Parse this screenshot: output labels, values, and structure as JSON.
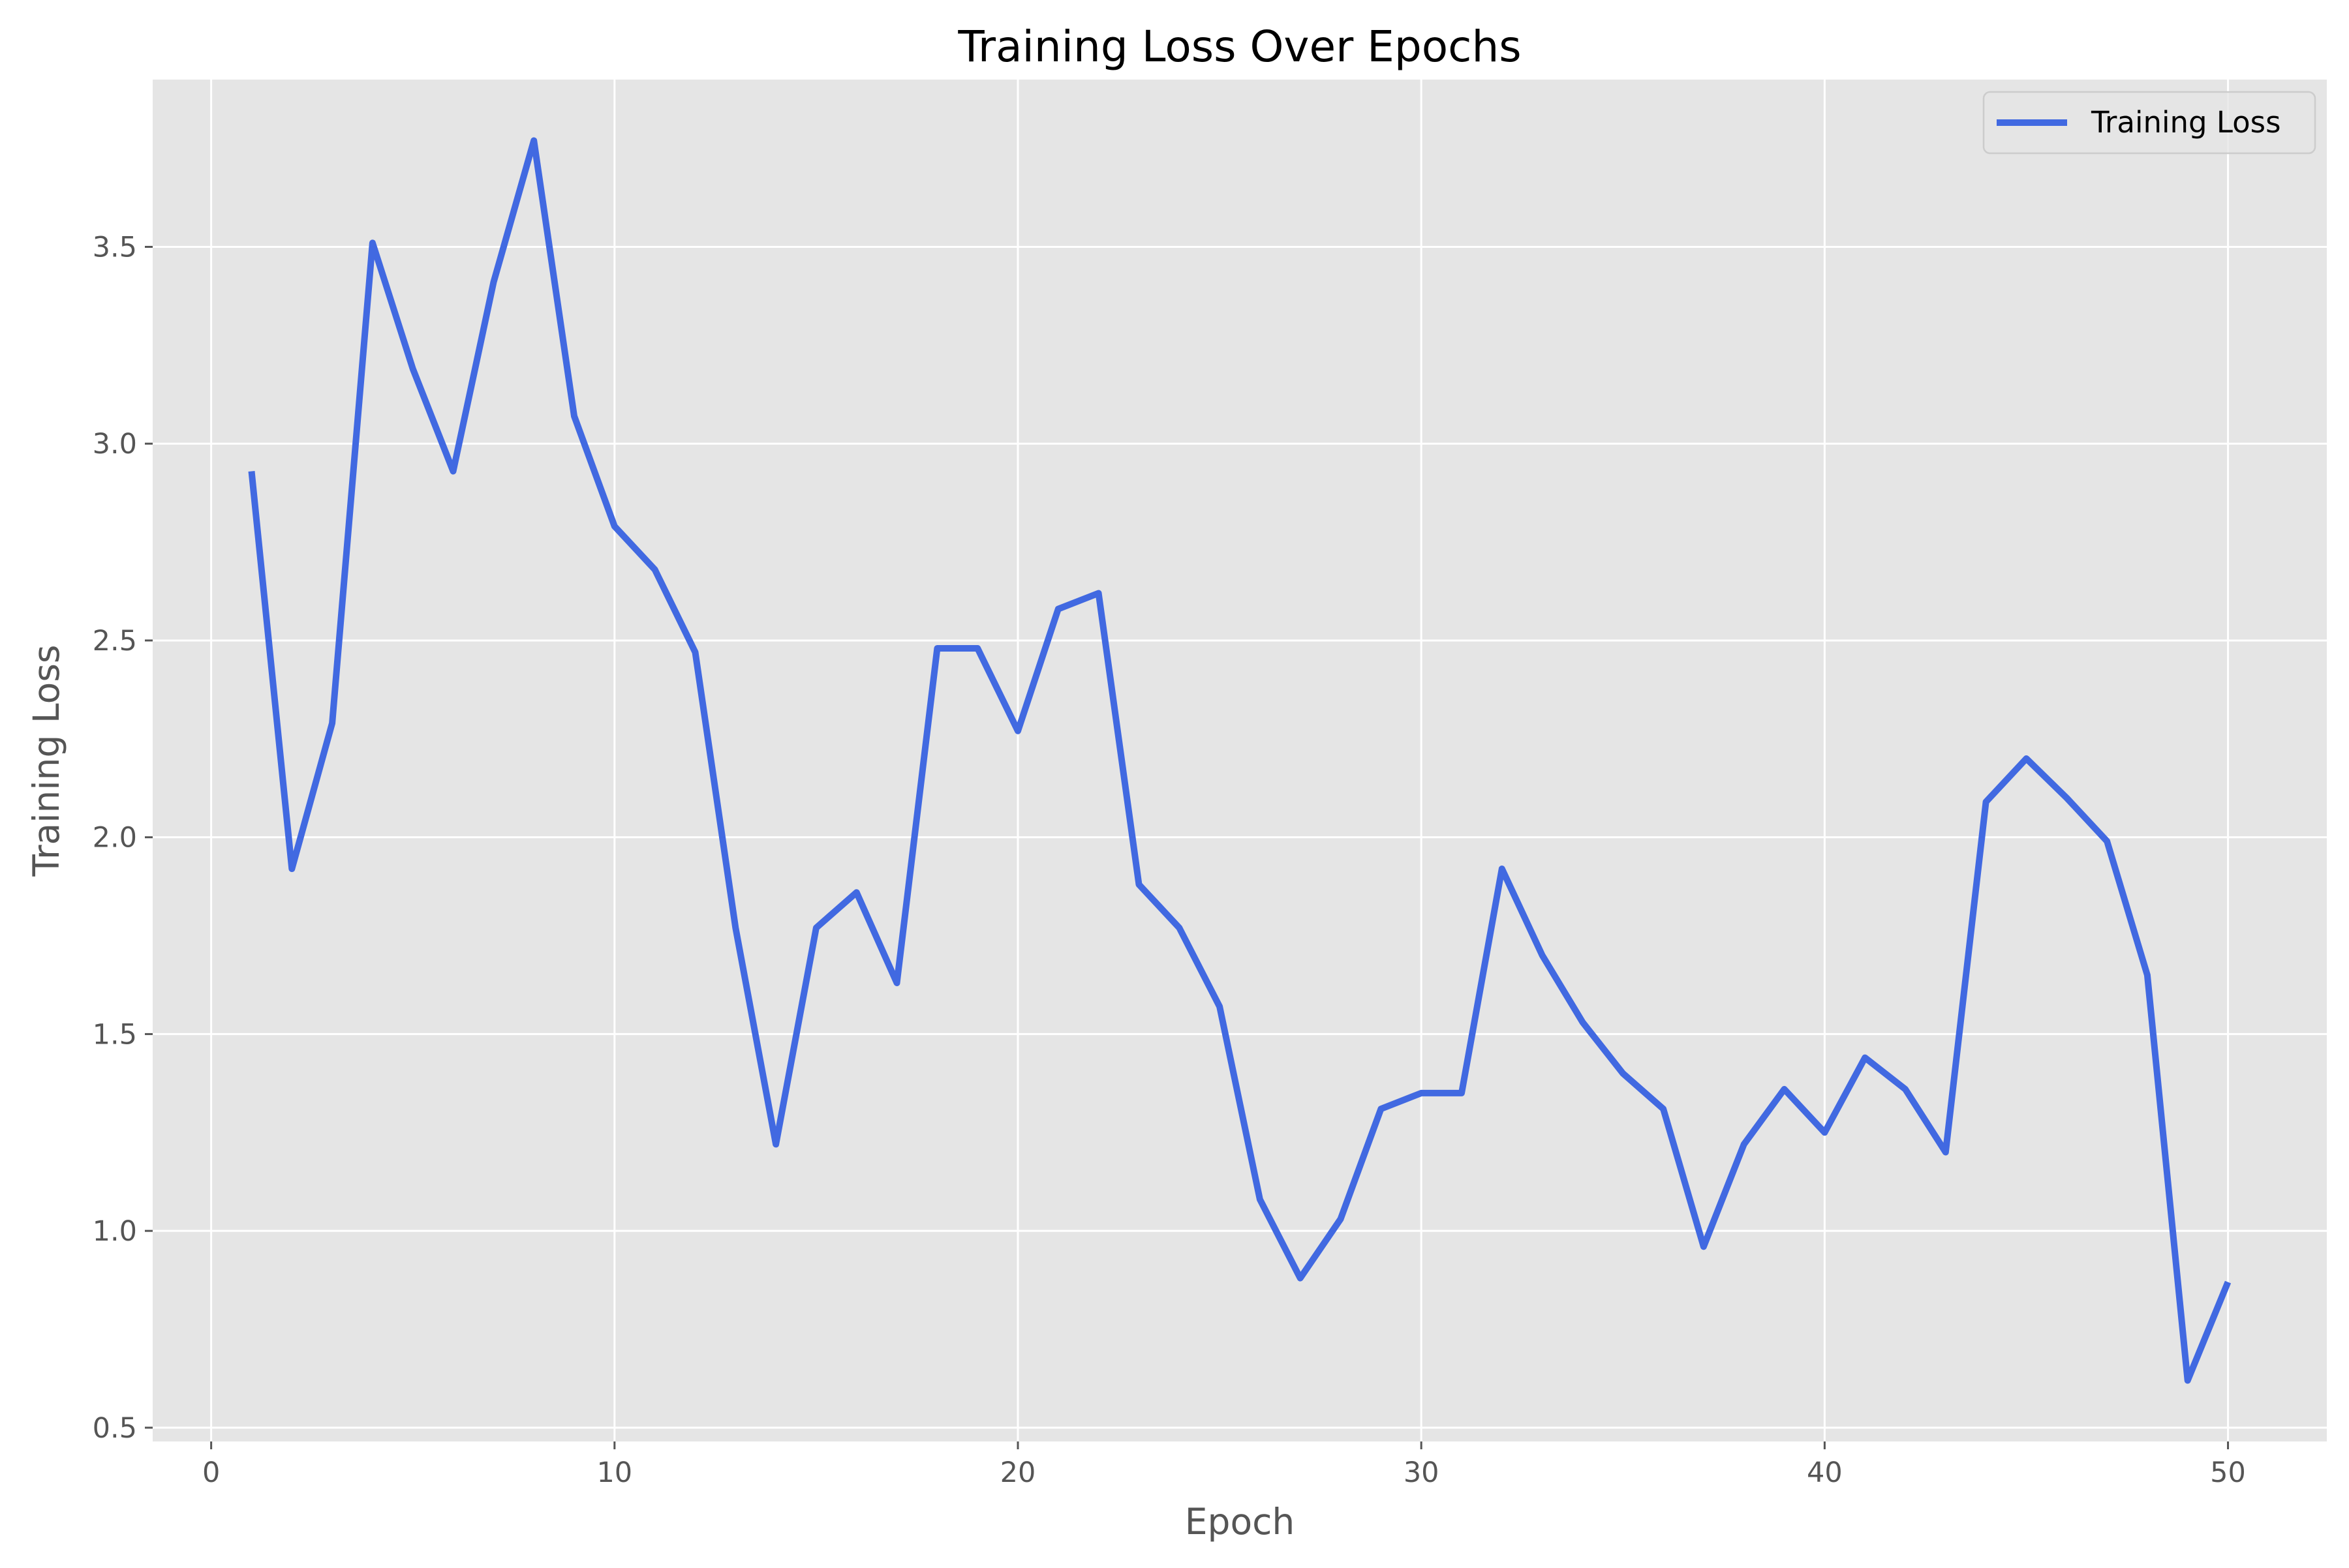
{
  "chart_data": {
    "type": "line",
    "title": "Training Loss Over Epochs",
    "xlabel": "Epoch",
    "ylabel": "Training Loss",
    "xlim": [
      -1.45,
      52.45
    ],
    "ylim": [
      0.465,
      3.925
    ],
    "xticks": [
      0,
      10,
      20,
      30,
      40,
      50
    ],
    "yticks": [
      0.5,
      1.0,
      1.5,
      2.0,
      2.5,
      3.0,
      3.5
    ],
    "ytick_labels": [
      "0.5",
      "1.0",
      "1.5",
      "2.0",
      "2.5",
      "3.0",
      "3.5"
    ],
    "xtick_labels": [
      "0",
      "10",
      "20",
      "30",
      "40",
      "50"
    ],
    "grid": true,
    "legend_position": "top-right",
    "series": [
      {
        "name": "Training Loss",
        "color": "#4169e1",
        "x": [
          1,
          2,
          3,
          4,
          5,
          6,
          7,
          8,
          9,
          10,
          11,
          12,
          13,
          14,
          15,
          16,
          17,
          18,
          19,
          20,
          21,
          22,
          23,
          24,
          25,
          26,
          27,
          28,
          29,
          30,
          31,
          32,
          33,
          34,
          35,
          36,
          37,
          38,
          39,
          40,
          41,
          42,
          43,
          44,
          45,
          46,
          47,
          48,
          49,
          50
        ],
        "y": [
          2.93,
          1.92,
          2.29,
          3.51,
          3.19,
          2.93,
          3.41,
          3.77,
          3.07,
          2.79,
          2.68,
          2.47,
          1.77,
          1.22,
          1.77,
          1.86,
          1.63,
          2.48,
          2.48,
          2.27,
          2.58,
          2.62,
          1.88,
          1.77,
          1.57,
          1.08,
          0.88,
          1.03,
          1.31,
          1.35,
          1.35,
          1.92,
          1.7,
          1.53,
          1.4,
          1.31,
          0.96,
          1.22,
          1.36,
          1.25,
          1.44,
          1.36,
          1.2,
          2.09,
          2.2,
          2.1,
          1.99,
          1.65,
          0.62,
          0.87
        ]
      }
    ]
  }
}
